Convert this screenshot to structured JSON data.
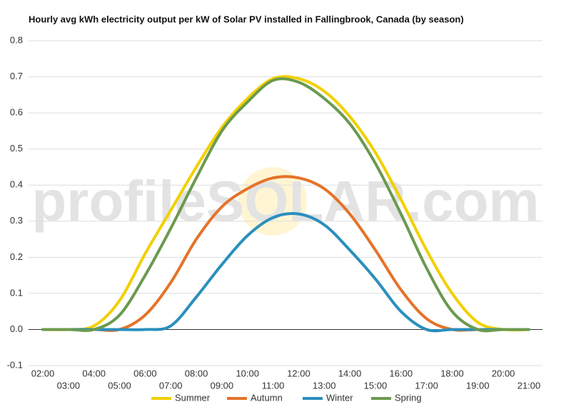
{
  "chart_data": {
    "type": "line",
    "title": "Hourly avg kWh electricity output per kW of Solar PV installed in Fallingbrook, Canada (by season)",
    "watermark": "profileSOLAR.com",
    "categories": [
      "02:00",
      "03:00",
      "04:00",
      "05:00",
      "06:00",
      "07:00",
      "08:00",
      "09:00",
      "10:00",
      "11:00",
      "12:00",
      "13:00",
      "14:00",
      "15:00",
      "16:00",
      "17:00",
      "18:00",
      "19:00",
      "20:00",
      "21:00"
    ],
    "series": [
      {
        "name": "Summer",
        "color": "#f2d000",
        "values": [
          0,
          0,
          0.01,
          0.08,
          0.21,
          0.33,
          0.45,
          0.56,
          0.64,
          0.695,
          0.695,
          0.66,
          0.59,
          0.49,
          0.36,
          0.22,
          0.1,
          0.02,
          0,
          0
        ]
      },
      {
        "name": "Autumn",
        "color": "#e5732a",
        "values": [
          0,
          0,
          0,
          0,
          0.04,
          0.13,
          0.25,
          0.34,
          0.39,
          0.42,
          0.42,
          0.39,
          0.32,
          0.22,
          0.11,
          0.03,
          0,
          0,
          0,
          0
        ]
      },
      {
        "name": "Winter",
        "color": "#2a8fbd",
        "values": [
          0,
          0,
          0,
          0,
          0,
          0.01,
          0.09,
          0.18,
          0.26,
          0.31,
          0.32,
          0.29,
          0.22,
          0.14,
          0.05,
          0,
          0,
          0,
          0,
          0
        ]
      },
      {
        "name": "Spring",
        "color": "#6b9a4f",
        "values": [
          0,
          0,
          0,
          0.04,
          0.15,
          0.28,
          0.42,
          0.55,
          0.63,
          0.69,
          0.685,
          0.64,
          0.57,
          0.46,
          0.32,
          0.17,
          0.05,
          0,
          0,
          0
        ]
      }
    ],
    "ylim": [
      -0.1,
      0.8
    ],
    "yticks": [
      -0.1,
      {
        "value": 0,
        "label": "0.0"
      },
      0.1,
      0.2,
      0.3,
      0.4,
      0.5,
      0.6,
      0.7,
      0.8
    ],
    "grid": true
  }
}
